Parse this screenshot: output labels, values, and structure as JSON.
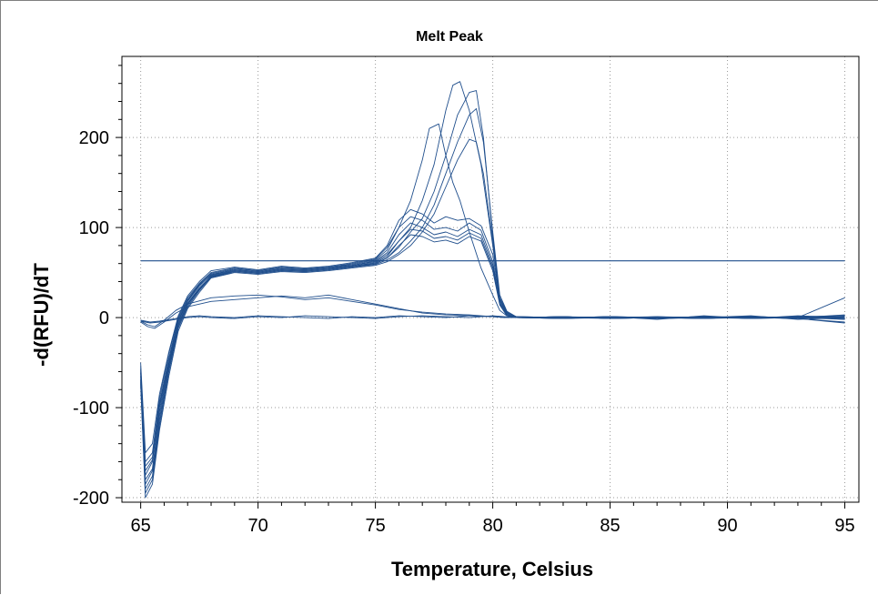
{
  "chart_data": {
    "type": "line",
    "title": "Melt Peak",
    "xlabel": "Temperature, Celsius",
    "ylabel": "-d(RFU)/dT",
    "xlim": [
      64.2,
      95.6
    ],
    "ylim": [
      -205,
      290
    ],
    "x_ticks": [
      65,
      70,
      75,
      80,
      85,
      90,
      95
    ],
    "y_ticks": [
      -200,
      -100,
      0,
      100,
      200
    ],
    "grid": true,
    "threshold": 63,
    "line_color": "#1f4e8c",
    "series": [
      {
        "x": [
          65,
          65.2,
          65.5,
          65.8,
          66.2,
          66.6,
          67,
          67.5,
          68,
          69,
          70,
          71,
          72,
          73,
          74,
          75,
          75.5,
          76,
          76.5,
          77,
          77.3,
          77.7,
          78,
          78.3,
          78.6,
          79,
          79.5,
          80,
          80.3,
          80.6,
          81,
          83,
          85,
          87,
          89,
          91,
          93,
          95
        ],
        "values": [
          -55,
          -160,
          -150,
          -90,
          -40,
          0,
          22,
          38,
          50,
          55,
          52,
          56,
          54,
          56,
          60,
          65,
          78,
          100,
          130,
          175,
          210,
          215,
          180,
          150,
          130,
          95,
          55,
          25,
          8,
          2,
          0,
          -1,
          1,
          -2,
          2,
          -1,
          1,
          2
        ]
      },
      {
        "x": [
          65,
          65.2,
          65.5,
          65.8,
          66.2,
          66.6,
          67,
          67.5,
          68,
          69,
          70,
          71,
          72,
          73,
          74,
          75,
          75.5,
          76,
          76.5,
          77,
          77.5,
          78,
          78.3,
          78.6,
          79,
          79.5,
          80,
          80.3,
          80.6,
          81,
          83,
          85,
          87,
          89,
          91,
          93,
          95
        ],
        "values": [
          -60,
          -175,
          -160,
          -100,
          -50,
          -5,
          18,
          35,
          48,
          53,
          51,
          54,
          53,
          55,
          58,
          62,
          70,
          85,
          100,
          130,
          170,
          230,
          258,
          262,
          230,
          170,
          80,
          20,
          5,
          1,
          0,
          1,
          -1,
          0,
          2,
          -2,
          0
        ]
      },
      {
        "x": [
          65,
          65.2,
          65.5,
          65.8,
          66.2,
          66.6,
          67,
          67.5,
          68,
          69,
          70,
          71,
          72,
          73,
          74,
          75,
          75.5,
          76,
          76.5,
          77,
          77.5,
          78,
          78.5,
          79,
          79.3,
          79.6,
          80,
          80.3,
          80.6,
          81,
          83,
          85,
          87,
          89,
          91,
          93,
          95
        ],
        "values": [
          -65,
          -185,
          -170,
          -110,
          -55,
          -8,
          15,
          32,
          46,
          52,
          50,
          53,
          52,
          54,
          57,
          60,
          66,
          78,
          95,
          110,
          140,
          180,
          225,
          250,
          252,
          200,
          90,
          22,
          6,
          0,
          1,
          -1,
          0,
          1,
          -1,
          2,
          0
        ]
      },
      {
        "x": [
          65,
          65.2,
          65.5,
          65.8,
          66.2,
          66.6,
          67,
          67.5,
          68,
          69,
          70,
          71,
          72,
          73,
          74,
          75,
          75.5,
          76,
          76.5,
          77,
          77.5,
          78,
          78.5,
          79,
          79.3,
          79.6,
          80,
          80.3,
          80.6,
          81,
          83,
          85,
          87,
          89,
          91,
          93,
          95
        ],
        "values": [
          -70,
          -195,
          -180,
          -120,
          -60,
          -12,
          12,
          30,
          45,
          51,
          49,
          52,
          51,
          53,
          56,
          59,
          64,
          72,
          85,
          100,
          125,
          160,
          195,
          225,
          232,
          195,
          95,
          25,
          7,
          1,
          0,
          1,
          -1,
          0,
          1,
          -1,
          1
        ]
      },
      {
        "x": [
          65,
          65.2,
          65.5,
          65.8,
          66.2,
          66.6,
          67,
          67.5,
          68,
          69,
          70,
          71,
          72,
          73,
          74,
          75,
          75.5,
          76,
          76.5,
          77,
          77.5,
          78,
          78.5,
          79,
          79.3,
          79.6,
          80,
          80.3,
          80.6,
          81,
          83,
          85,
          87,
          89,
          91,
          93,
          95
        ],
        "values": [
          -75,
          -200,
          -185,
          -125,
          -65,
          -15,
          10,
          28,
          44,
          50,
          48,
          51,
          50,
          52,
          55,
          58,
          62,
          70,
          80,
          95,
          115,
          145,
          175,
          198,
          195,
          160,
          85,
          22,
          6,
          0,
          -1,
          0,
          1,
          -1,
          0,
          1,
          0
        ]
      },
      {
        "x": [
          65,
          65.2,
          65.5,
          65.8,
          66.2,
          66.6,
          67,
          67.5,
          68,
          69,
          70,
          71,
          72,
          73,
          74,
          75,
          75.5,
          76,
          76.5,
          77,
          77.5,
          78,
          78.5,
          79,
          79.5,
          80,
          80.3,
          80.6,
          81,
          83,
          85,
          87,
          89,
          91,
          93,
          95
        ],
        "values": [
          -50,
          -150,
          -140,
          -85,
          -38,
          2,
          24,
          40,
          52,
          56,
          53,
          57,
          55,
          57,
          61,
          66,
          80,
          108,
          120,
          115,
          105,
          112,
          108,
          110,
          102,
          70,
          20,
          5,
          1,
          0,
          -1,
          1,
          0,
          -1,
          1,
          -2
        ]
      },
      {
        "x": [
          65,
          65.2,
          65.5,
          65.8,
          66.2,
          66.6,
          67,
          67.5,
          68,
          69,
          70,
          71,
          72,
          73,
          74,
          75,
          75.5,
          76,
          76.5,
          77,
          77.5,
          78,
          78.5,
          79,
          79.5,
          80,
          80.3,
          80.6,
          81,
          83,
          85,
          87,
          89,
          91,
          93,
          95
        ],
        "values": [
          -58,
          -165,
          -155,
          -95,
          -45,
          -2,
          20,
          37,
          49,
          54,
          52,
          55,
          54,
          56,
          59,
          64,
          75,
          100,
          112,
          108,
          98,
          100,
          96,
          105,
          97,
          62,
          18,
          4,
          0,
          1,
          0,
          -1,
          1,
          0,
          -1,
          1
        ]
      },
      {
        "x": [
          65,
          65.2,
          65.5,
          65.8,
          66.2,
          66.6,
          67,
          67.5,
          68,
          69,
          70,
          71,
          72,
          73,
          74,
          75,
          75.5,
          76,
          76.5,
          77,
          77.5,
          78,
          78.5,
          79,
          79.5,
          80,
          80.3,
          80.6,
          81,
          83,
          85,
          87,
          89,
          91,
          93,
          95
        ],
        "values": [
          -62,
          -170,
          -158,
          -98,
          -48,
          -4,
          19,
          36,
          47,
          53,
          51,
          54,
          53,
          55,
          58,
          63,
          72,
          92,
          105,
          100,
          92,
          95,
          90,
          98,
          92,
          58,
          16,
          3,
          0,
          0,
          1,
          0,
          -1,
          1,
          0,
          -1
        ]
      },
      {
        "x": [
          65,
          65.2,
          65.5,
          65.8,
          66.2,
          66.6,
          67,
          67.5,
          68,
          69,
          70,
          71,
          72,
          73,
          74,
          75,
          75.5,
          76,
          76.5,
          77,
          77.5,
          78,
          78.5,
          79,
          79.5,
          80,
          80.3,
          80.6,
          81,
          83,
          85,
          87,
          89,
          91,
          93,
          95
        ],
        "values": [
          -68,
          -180,
          -168,
          -105,
          -52,
          -7,
          16,
          33,
          46,
          52,
          50,
          53,
          52,
          54,
          57,
          61,
          68,
          85,
          98,
          96,
          88,
          90,
          86,
          94,
          88,
          55,
          15,
          3,
          0,
          1,
          -1,
          0,
          1,
          -1,
          0,
          2
        ]
      },
      {
        "x": [
          65,
          65.2,
          65.5,
          65.8,
          66.2,
          66.6,
          67,
          67.5,
          68,
          69,
          70,
          71,
          72,
          73,
          74,
          75,
          75.5,
          76,
          76.5,
          77,
          77.5,
          78,
          78.5,
          79,
          79.5,
          80,
          80.3,
          80.6,
          81,
          83,
          85,
          87,
          89,
          91,
          93,
          95
        ],
        "values": [
          -72,
          -190,
          -176,
          -115,
          -58,
          -10,
          14,
          31,
          45,
          51,
          49,
          52,
          51,
          53,
          56,
          60,
          66,
          80,
          92,
          90,
          84,
          86,
          82,
          90,
          85,
          52,
          14,
          2,
          0,
          0,
          1,
          -1,
          0,
          1,
          -1,
          -6
        ]
      },
      {
        "x": [
          65,
          65.3,
          65.6,
          66,
          66.5,
          67,
          68,
          69,
          70,
          71,
          72,
          73,
          74,
          75,
          76,
          77,
          78,
          79,
          80,
          80.5,
          81,
          83,
          85,
          87,
          89,
          91,
          93,
          95
        ],
        "values": [
          -5,
          -10,
          -12,
          -5,
          5,
          12,
          18,
          20,
          22,
          24,
          22,
          25,
          20,
          15,
          10,
          5,
          3,
          2,
          1,
          0,
          0,
          1,
          -1,
          0,
          1,
          -1,
          0,
          3
        ]
      },
      {
        "x": [
          65,
          65.3,
          65.6,
          66,
          66.5,
          67,
          68,
          69,
          70,
          71,
          72,
          73,
          74,
          75,
          76,
          77,
          78,
          79,
          80,
          80.5,
          81,
          83,
          85,
          87,
          89,
          91,
          93,
          95
        ],
        "values": [
          -4,
          -8,
          -10,
          -3,
          8,
          15,
          22,
          24,
          25,
          23,
          20,
          22,
          18,
          14,
          9,
          6,
          4,
          3,
          1,
          0,
          0,
          -1,
          1,
          0,
          -1,
          1,
          0,
          -2
        ]
      },
      {
        "x": [
          65,
          65.4,
          65.8,
          66.5,
          67,
          67.5,
          68,
          69,
          70,
          71,
          72,
          73,
          74,
          75,
          76,
          77,
          78,
          79,
          80,
          81,
          83,
          85,
          87,
          89,
          91,
          93,
          95
        ],
        "values": [
          -4,
          -6,
          -5,
          -2,
          0,
          1,
          0,
          -1,
          1,
          0,
          2,
          1,
          0,
          -1,
          1,
          2,
          1,
          0,
          2,
          0,
          1,
          -1,
          0,
          1,
          0,
          -1,
          -5
        ]
      },
      {
        "x": [
          65,
          65.4,
          65.8,
          66.5,
          67,
          67.5,
          68,
          69,
          70,
          71,
          72,
          73,
          74,
          75,
          76,
          77,
          78,
          79,
          80,
          81,
          83,
          85,
          87,
          89,
          91,
          93,
          95
        ],
        "values": [
          -3,
          -5,
          -4,
          -1,
          1,
          2,
          1,
          0,
          2,
          1,
          0,
          -1,
          1,
          0,
          2,
          1,
          0,
          2,
          1,
          0,
          -1,
          1,
          0,
          -1,
          1,
          0,
          22
        ]
      }
    ]
  }
}
